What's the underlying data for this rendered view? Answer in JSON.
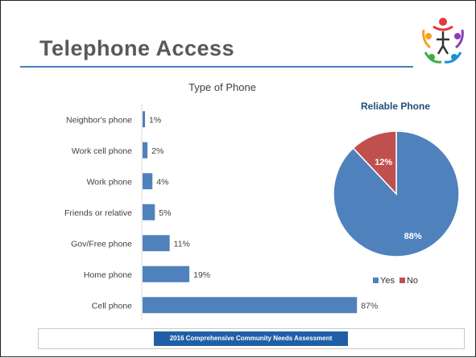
{
  "slide": {
    "title": "Telephone Access",
    "footer": "2016 Comprehensive Community Needs Assessment"
  },
  "colors": {
    "title_text": "#595959",
    "accent_rule": "#4a7ebb",
    "bar": "#4f81bd",
    "pie_yes": "#4f81bd",
    "pie_no": "#c0504d",
    "pie_title": "#1f4e79",
    "footer_bg": "#1f5fa6"
  },
  "logo": {
    "icon": "community-people-circle-logo"
  },
  "chart_data": [
    {
      "type": "bar",
      "orientation": "horizontal",
      "title": "Type of Phone",
      "categories": [
        "Neighbor's phone",
        "Work cell phone",
        "Work phone",
        "Friends or relative",
        "Gov/Free phone",
        "Home phone",
        "Cell phone"
      ],
      "values": [
        1,
        2,
        4,
        5,
        11,
        19,
        87
      ],
      "value_labels": [
        "1%",
        "2%",
        "4%",
        "5%",
        "11%",
        "19%",
        "87%"
      ],
      "unit": "%",
      "xlim": [
        0,
        100
      ],
      "grid": false
    },
    {
      "type": "pie",
      "title": "Reliable Phone",
      "labels": [
        "Yes",
        "No"
      ],
      "values": [
        88,
        12
      ],
      "value_labels": [
        "88%",
        "12%"
      ],
      "legend": {
        "position": "bottom",
        "entries": [
          "Yes",
          "No"
        ]
      }
    }
  ]
}
